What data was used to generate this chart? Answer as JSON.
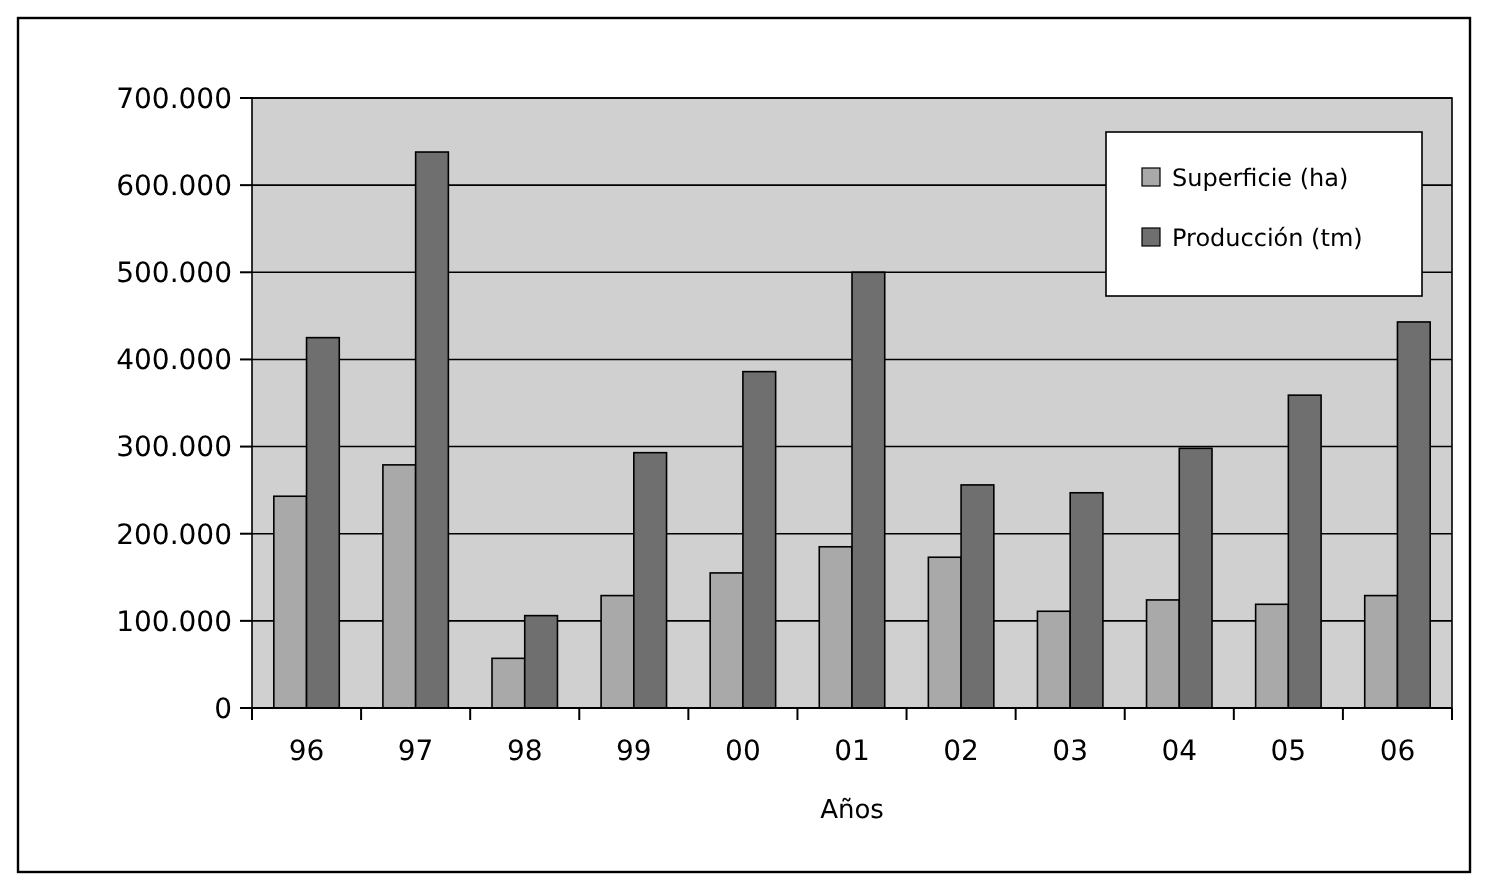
{
  "chart_data": {
    "type": "bar",
    "xlabel": "Años",
    "categories": [
      "96",
      "97",
      "98",
      "99",
      "00",
      "01",
      "02",
      "03",
      "04",
      "05",
      "06"
    ],
    "series": [
      {
        "name": "Superficie (ha)",
        "color": "#a9a9a9",
        "values": [
          243000,
          279000,
          57000,
          129000,
          155000,
          185000,
          173000,
          111000,
          124000,
          119000,
          129000
        ]
      },
      {
        "name": "Producción (tm)",
        "color": "#6f6f6f",
        "values": [
          425000,
          638000,
          106000,
          293000,
          386000,
          500000,
          256000,
          247000,
          298000,
          359000,
          443000
        ]
      }
    ],
    "ylim": [
      0,
      700000
    ],
    "yticks": [
      0,
      {
        "value": 100000,
        "label": "100.000"
      },
      {
        "value": 200000,
        "label": "200.000"
      },
      {
        "value": 300000,
        "label": "300.000"
      },
      {
        "value": 400000,
        "label": "400.000"
      },
      {
        "value": 500000,
        "label": "500.000"
      },
      {
        "value": 600000,
        "label": "600.000"
      },
      {
        "value": 700000,
        "label": "700.000"
      }
    ],
    "grid": "y",
    "legend": "top right"
  }
}
